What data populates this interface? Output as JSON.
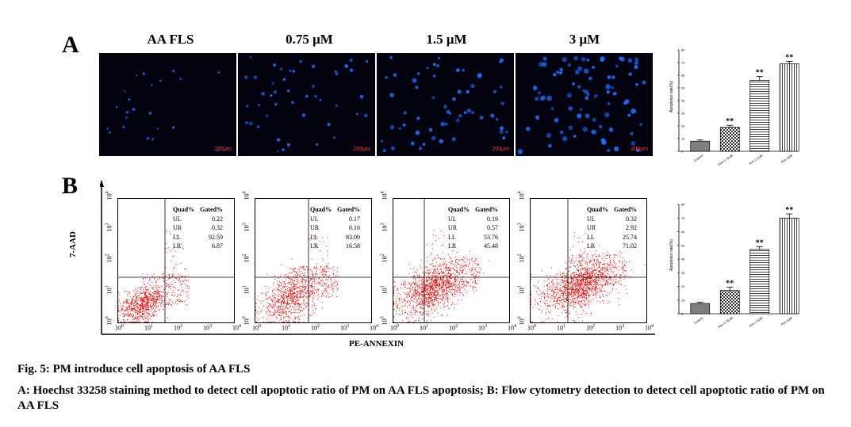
{
  "panels": {
    "a_label": "A",
    "b_label": "B",
    "columns": [
      "AA FLS",
      "0.75 μM",
      "1.5 μM",
      "3 μM"
    ],
    "scale_bar": "200μm"
  },
  "flow": {
    "y_axis_label": "7-AAD",
    "x_axis_label": "PE-ANNEXIN",
    "header_quad": "Quad%",
    "header_gated": "Gated%",
    "tick_exponents": [
      "0",
      "1",
      "2",
      "3",
      "4"
    ],
    "tick_base": "10",
    "plots": [
      {
        "rows": [
          [
            "UL",
            "0.22"
          ],
          [
            "UR",
            "0.32"
          ],
          [
            "LL",
            "92.59"
          ],
          [
            "LR",
            "6.87"
          ]
        ]
      },
      {
        "rows": [
          [
            "UL",
            "0.17"
          ],
          [
            "UR",
            "0.16"
          ],
          [
            "LL",
            "83.09"
          ],
          [
            "LR",
            "16.58"
          ]
        ]
      },
      {
        "rows": [
          [
            "UL",
            "0.19"
          ],
          [
            "UR",
            "0.57"
          ],
          [
            "LL",
            "53.76"
          ],
          [
            "LR",
            "45.48"
          ]
        ]
      },
      {
        "rows": [
          [
            "UL",
            "0.32"
          ],
          [
            "UR",
            "2.92"
          ],
          [
            "LL",
            "25.74"
          ],
          [
            "LR",
            "71.02"
          ]
        ]
      }
    ]
  },
  "chart_data": [
    {
      "type": "bar",
      "ylabel": "Apoptosis rate(%)",
      "ylim": [
        0,
        80
      ],
      "yticks": [
        "0",
        "10",
        "20",
        "30",
        "40",
        "50",
        "60",
        "70",
        "80"
      ],
      "categories": [
        "Control",
        "Prm 0.75uM",
        "Prm 1.5uM",
        "Prm 3uM"
      ],
      "values": [
        8,
        19,
        56,
        69
      ],
      "errors": [
        1,
        1.5,
        3,
        2
      ],
      "significance": [
        "",
        "**",
        "**",
        "**"
      ],
      "fills": [
        "#7f7f7f",
        "checker",
        "hstripe",
        "vstripe"
      ]
    },
    {
      "type": "bar",
      "ylabel": "Apoptosis rate(%)",
      "ylim": [
        0,
        80
      ],
      "yticks": [
        "0",
        "10",
        "20",
        "30",
        "40",
        "50",
        "60",
        "70",
        "80"
      ],
      "categories": [
        "Control",
        "Prm 0.75uM",
        "Prm 1.5uM",
        "Prm 3uM"
      ],
      "values": [
        7.5,
        17,
        47,
        70
      ],
      "errors": [
        1,
        2.5,
        2,
        3
      ],
      "significance": [
        "",
        "**",
        "**",
        "**"
      ],
      "fills": [
        "#7f7f7f",
        "checker",
        "hstripe",
        "vstripe"
      ]
    }
  ],
  "caption": {
    "title": "Fig. 5: PM introduce cell apoptosis of AA FLS",
    "body": "A: Hoechst 33258 staining method to detect cell apoptotic ratio of PM on AA FLS apoptosis; B: Flow cytometry detection to detect cell apoptotic ratio of PM on AA FLS"
  }
}
